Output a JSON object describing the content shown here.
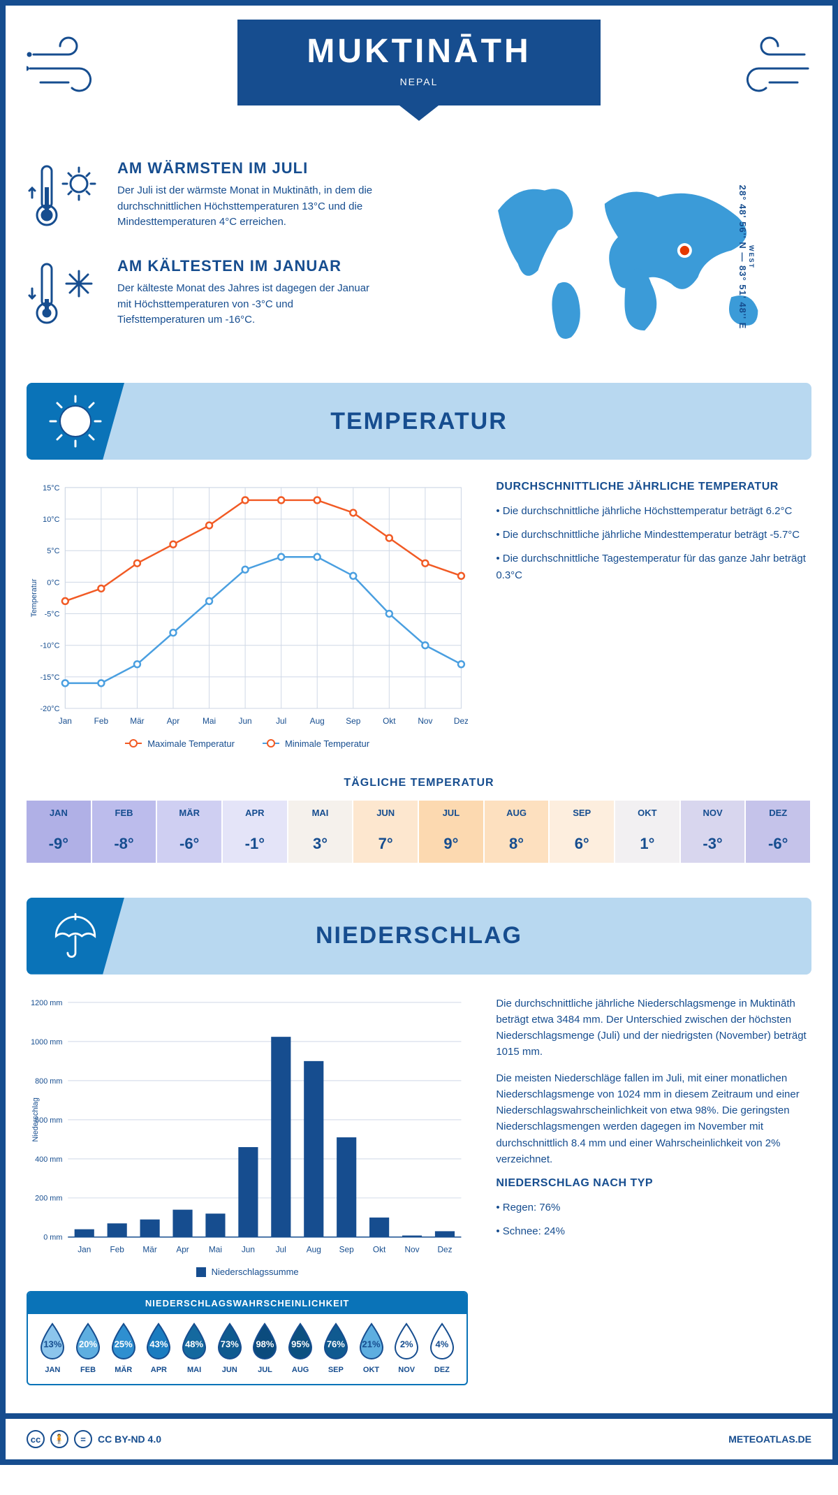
{
  "header": {
    "title": "MUKTINĀTH",
    "subtitle": "NEPAL"
  },
  "coords": {
    "text": "28° 48' 56'' N — 83° 51' 48'' E",
    "sub": "WEST"
  },
  "colors": {
    "primary": "#164d8f",
    "accent": "#0a73b8",
    "section_bg": "#b8d8f0",
    "line_max": "#f15a24",
    "line_min": "#4a9fe0",
    "bar": "#164d8f",
    "grid": "#cfd8e6"
  },
  "facts": {
    "warm": {
      "title": "AM WÄRMSTEN IM JULI",
      "text": "Der Juli ist der wärmste Monat in Muktināth, in dem die durchschnittlichen Höchsttemperaturen 13°C und die Mindesttemperaturen 4°C erreichen."
    },
    "cold": {
      "title": "AM KÄLTESTEN IM JANUAR",
      "text": "Der kälteste Monat des Jahres ist dagegen der Januar mit Höchsttemperaturen von -3°C und Tiefsttemperaturen um -16°C."
    }
  },
  "months": [
    "Jan",
    "Feb",
    "Mär",
    "Apr",
    "Mai",
    "Jun",
    "Jul",
    "Aug",
    "Sep",
    "Okt",
    "Nov",
    "Dez"
  ],
  "months_upper": [
    "JAN",
    "FEB",
    "MÄR",
    "APR",
    "MAI",
    "JUN",
    "JUL",
    "AUG",
    "SEP",
    "OKT",
    "NOV",
    "DEZ"
  ],
  "temperature": {
    "section_title": "TEMPERATUR",
    "chart": {
      "type": "line",
      "ylabel": "Temperatur",
      "ylim": [
        -20,
        15
      ],
      "ytick_step": 5,
      "max_series": [
        -3,
        -1,
        3,
        6,
        9,
        13,
        13,
        13,
        11,
        7,
        3,
        1
      ],
      "min_series": [
        -16,
        -16,
        -13,
        -8,
        -3,
        2,
        4,
        4,
        1,
        -5,
        -10,
        -13
      ],
      "max_label": "Maximale Temperatur",
      "min_label": "Minimale Temperatur"
    },
    "avg_title": "DURCHSCHNITTLICHE JÄHRLICHE TEMPERATUR",
    "bullets": [
      "Die durchschnittliche jährliche Höchsttemperatur beträgt 6.2°C",
      "Die durchschnittliche jährliche Mindesttemperatur beträgt -5.7°C",
      "Die durchschnittliche Tagestemperatur für das ganze Jahr beträgt 0.3°C"
    ],
    "daily_title": "TÄGLICHE TEMPERATUR",
    "daily": {
      "values": [
        "-9°",
        "-8°",
        "-6°",
        "-1°",
        "3°",
        "7°",
        "9°",
        "8°",
        "6°",
        "1°",
        "-3°",
        "-6°"
      ],
      "bg": [
        "#b0b0e6",
        "#bcbcec",
        "#cfcff2",
        "#e4e4f8",
        "#f5f1ec",
        "#fde7cf",
        "#fcd9b0",
        "#fde0bf",
        "#fdeede",
        "#f2f0f2",
        "#d8d6ee",
        "#c5c3ea"
      ]
    }
  },
  "precip": {
    "section_title": "NIEDERSCHLAG",
    "chart": {
      "type": "bar",
      "ylabel": "Niederschlag",
      "ylim": [
        0,
        1200
      ],
      "ytick_step": 200,
      "values": [
        40,
        70,
        90,
        140,
        120,
        460,
        1024,
        900,
        510,
        100,
        8,
        30
      ],
      "legend": "Niederschlagssumme"
    },
    "para1": "Die durchschnittliche jährliche Niederschlagsmenge in Muktināth beträgt etwa 3484 mm. Der Unterschied zwischen der höchsten Niederschlagsmenge (Juli) und der niedrigsten (November) beträgt 1015 mm.",
    "para2": "Die meisten Niederschläge fallen im Juli, mit einer monatlichen Niederschlagsmenge von 1024 mm in diesem Zeitraum und einer Niederschlagswahrscheinlichkeit von etwa 98%. Die geringsten Niederschlagsmengen werden dagegen im November mit durchschnittlich 8.4 mm und einer Wahrscheinlichkeit von 2% verzeichnet.",
    "type_title": "NIEDERSCHLAG NACH TYP",
    "type_bullets": [
      "Regen: 76%",
      "Schnee: 24%"
    ],
    "prob_title": "NIEDERSCHLAGSWAHRSCHEINLICHKEIT",
    "prob": {
      "values": [
        13,
        20,
        25,
        43,
        48,
        73,
        98,
        95,
        76,
        21,
        2,
        4
      ],
      "fills": [
        "#8cc5ec",
        "#5eaee0",
        "#2e8fd0",
        "#1a7cc0",
        "#14699f",
        "#0f5a8f",
        "#0b4b7d",
        "#0c5080",
        "#105a90",
        "#5eaee0",
        "#ffffff",
        "#ffffff"
      ],
      "text_colors": [
        "#164d8f",
        "#ffffff",
        "#ffffff",
        "#ffffff",
        "#ffffff",
        "#ffffff",
        "#ffffff",
        "#ffffff",
        "#ffffff",
        "#164d8f",
        "#164d8f",
        "#164d8f"
      ]
    }
  },
  "footer": {
    "license": "CC BY-ND 4.0",
    "site": "METEOATLAS.DE"
  }
}
